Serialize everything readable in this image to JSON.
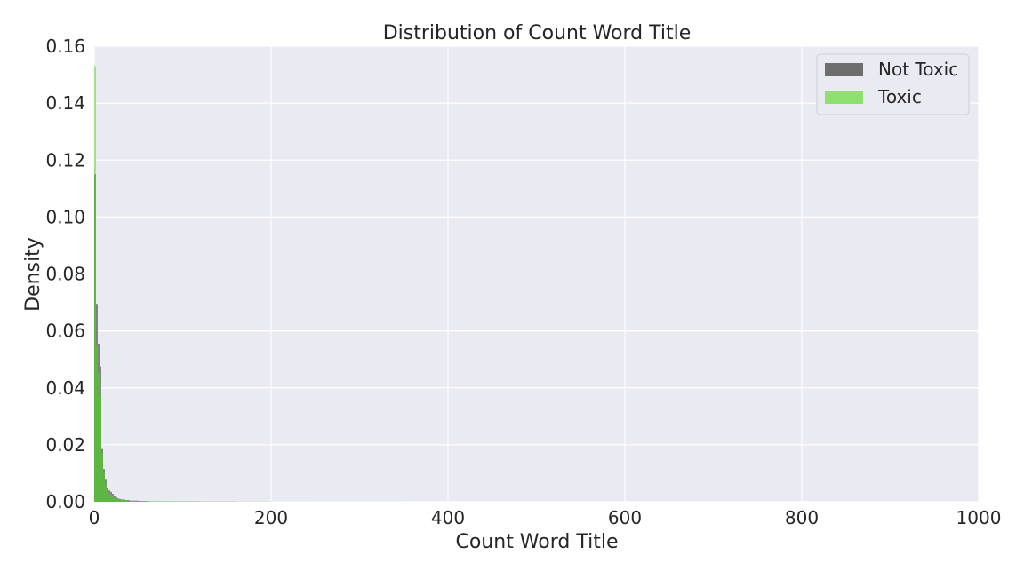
{
  "chart_data": {
    "type": "histogram",
    "title": "Distribution of Count Word Title",
    "xlabel": "Count Word Title",
    "ylabel": "Density",
    "xlim": [
      0,
      1000
    ],
    "ylim": [
      0,
      0.16
    ],
    "x_ticks": [
      0,
      200,
      400,
      600,
      800,
      1000
    ],
    "y_ticks": [
      0.0,
      0.02,
      0.04,
      0.06,
      0.08,
      0.1,
      0.12,
      0.14,
      0.16
    ],
    "x_tick_labels": [
      "0",
      "200",
      "400",
      "600",
      "800",
      "1000"
    ],
    "y_tick_labels": [
      "0.00",
      "0.02",
      "0.04",
      "0.06",
      "0.08",
      "0.10",
      "0.12",
      "0.14",
      "0.16"
    ],
    "grid": true,
    "legend": {
      "position": "top-right",
      "entries": [
        {
          "name": "Not Toxic",
          "color": "#6e6e6e"
        },
        {
          "name": "Toxic",
          "color": "#90e070"
        }
      ]
    },
    "overlap_color": "#5db544",
    "background_color": "#eaeaf2",
    "series": [
      {
        "name": "Not Toxic",
        "color": "#6e6e6e",
        "bins": [
          [
            0,
            2,
            0.115
          ],
          [
            2,
            4,
            0.0695
          ],
          [
            4,
            6,
            0.0555
          ],
          [
            6,
            8,
            0.0475
          ],
          [
            8,
            10,
            0.0185
          ],
          [
            10,
            12,
            0.0115
          ],
          [
            12,
            14,
            0.008
          ],
          [
            14,
            16,
            0.005
          ],
          [
            16,
            18,
            0.004
          ],
          [
            18,
            20,
            0.0035
          ],
          [
            20,
            22,
            0.0028
          ],
          [
            22,
            24,
            0.002
          ],
          [
            24,
            26,
            0.0016
          ],
          [
            26,
            28,
            0.0012
          ],
          [
            28,
            30,
            0.001
          ],
          [
            30,
            35,
            0.0008
          ],
          [
            35,
            40,
            0.0006
          ],
          [
            40,
            50,
            0.0004
          ],
          [
            50,
            60,
            0.00025
          ],
          [
            60,
            70,
            0.00015
          ],
          [
            70,
            90,
            0.0001
          ],
          [
            90,
            120,
            7e-05
          ],
          [
            120,
            160,
            4e-05
          ],
          [
            160,
            200,
            2e-05
          ]
        ]
      },
      {
        "name": "Toxic",
        "color": "#90e070",
        "bins": [
          [
            0,
            2,
            0.153
          ],
          [
            2,
            4,
            0.055
          ],
          [
            4,
            6,
            0.045
          ],
          [
            6,
            8,
            0.037
          ],
          [
            8,
            10,
            0.017
          ],
          [
            10,
            12,
            0.01
          ],
          [
            12,
            14,
            0.006
          ],
          [
            14,
            16,
            0.004
          ],
          [
            16,
            18,
            0.003
          ],
          [
            18,
            20,
            0.0025
          ],
          [
            20,
            22,
            0.0018
          ],
          [
            22,
            24,
            0.0014
          ],
          [
            24,
            26,
            0.0011
          ],
          [
            26,
            28,
            0.0009
          ],
          [
            28,
            30,
            0.0007
          ],
          [
            30,
            35,
            0.0006
          ],
          [
            35,
            40,
            0.0005
          ],
          [
            40,
            50,
            0.0003
          ],
          [
            50,
            60,
            0.0002
          ],
          [
            60,
            70,
            0.00015
          ],
          [
            70,
            90,
            0.0001
          ],
          [
            90,
            120,
            8e-05
          ],
          [
            120,
            160,
            6e-05
          ],
          [
            160,
            200,
            5e-05
          ],
          [
            200,
            250,
            4e-05
          ],
          [
            250,
            300,
            3e-05
          ],
          [
            300,
            350,
            2e-05
          ]
        ]
      }
    ]
  }
}
